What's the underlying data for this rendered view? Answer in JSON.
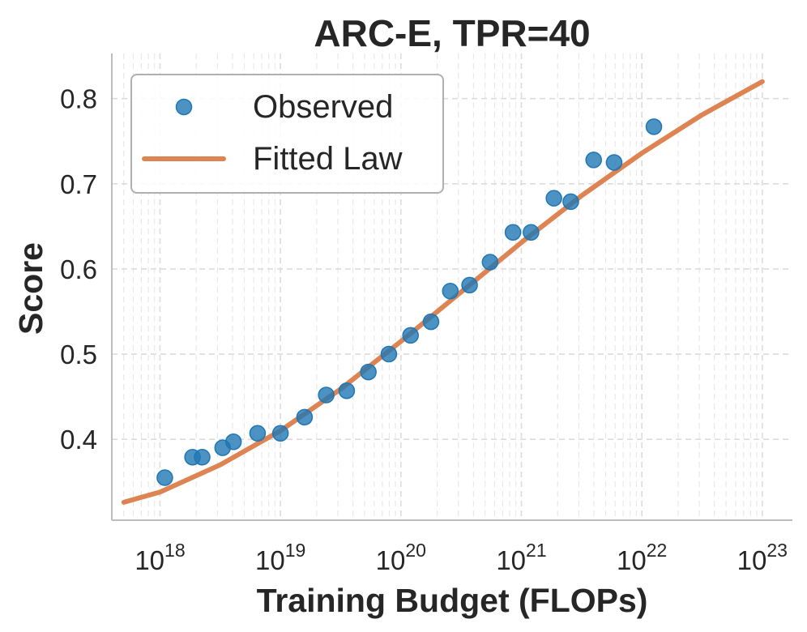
{
  "chart_data": {
    "type": "scatter",
    "title": "ARC-E, TPR=40",
    "xlabel": "Training Budget (FLOPs)",
    "ylabel": "Score",
    "xscale": "log",
    "xlim_exp": [
      17.6,
      23.25
    ],
    "ylim": [
      0.305,
      0.853
    ],
    "x_ticks": [
      {
        "exp": 18,
        "base": "10",
        "sup": "18"
      },
      {
        "exp": 19,
        "base": "10",
        "sup": "19"
      },
      {
        "exp": 20,
        "base": "10",
        "sup": "20"
      },
      {
        "exp": 21,
        "base": "10",
        "sup": "21"
      },
      {
        "exp": 22,
        "base": "10",
        "sup": "22"
      },
      {
        "exp": 23,
        "base": "10",
        "sup": "23"
      }
    ],
    "y_ticks": [
      {
        "value": 0.4,
        "label": "0.4"
      },
      {
        "value": 0.5,
        "label": "0.5"
      },
      {
        "value": 0.6,
        "label": "0.6"
      },
      {
        "value": 0.7,
        "label": "0.7"
      },
      {
        "value": 0.8,
        "label": "0.8"
      }
    ],
    "grid": true,
    "legend_position": "top-left",
    "series": [
      {
        "name": "Observed",
        "kind": "scatter",
        "color": "#1f77b4",
        "points": [
          {
            "x_exp": 18.04,
            "y": 0.355
          },
          {
            "x_exp": 18.27,
            "y": 0.379
          },
          {
            "x_exp": 18.35,
            "y": 0.379
          },
          {
            "x_exp": 18.52,
            "y": 0.39
          },
          {
            "x_exp": 18.61,
            "y": 0.397
          },
          {
            "x_exp": 18.81,
            "y": 0.407
          },
          {
            "x_exp": 19.0,
            "y": 0.407
          },
          {
            "x_exp": 19.2,
            "y": 0.426
          },
          {
            "x_exp": 19.38,
            "y": 0.452
          },
          {
            "x_exp": 19.55,
            "y": 0.457
          },
          {
            "x_exp": 19.73,
            "y": 0.479
          },
          {
            "x_exp": 19.9,
            "y": 0.5
          },
          {
            "x_exp": 20.08,
            "y": 0.522
          },
          {
            "x_exp": 20.25,
            "y": 0.538
          },
          {
            "x_exp": 20.41,
            "y": 0.574
          },
          {
            "x_exp": 20.57,
            "y": 0.581
          },
          {
            "x_exp": 20.74,
            "y": 0.608
          },
          {
            "x_exp": 20.93,
            "y": 0.643
          },
          {
            "x_exp": 21.08,
            "y": 0.643
          },
          {
            "x_exp": 21.27,
            "y": 0.683
          },
          {
            "x_exp": 21.41,
            "y": 0.679
          },
          {
            "x_exp": 21.6,
            "y": 0.728
          },
          {
            "x_exp": 21.77,
            "y": 0.725
          },
          {
            "x_exp": 22.1,
            "y": 0.767
          }
        ]
      },
      {
        "name": "Fitted Law",
        "kind": "line",
        "color": "#dd8452",
        "points": [
          {
            "x_exp": 17.7,
            "y": 0.326
          },
          {
            "x_exp": 18.0,
            "y": 0.338
          },
          {
            "x_exp": 18.5,
            "y": 0.37
          },
          {
            "x_exp": 19.0,
            "y": 0.41
          },
          {
            "x_exp": 19.5,
            "y": 0.459
          },
          {
            "x_exp": 20.0,
            "y": 0.515
          },
          {
            "x_exp": 20.5,
            "y": 0.573
          },
          {
            "x_exp": 21.0,
            "y": 0.631
          },
          {
            "x_exp": 21.5,
            "y": 0.686
          },
          {
            "x_exp": 22.0,
            "y": 0.736
          },
          {
            "x_exp": 22.5,
            "y": 0.781
          },
          {
            "x_exp": 23.0,
            "y": 0.82
          }
        ]
      }
    ]
  }
}
